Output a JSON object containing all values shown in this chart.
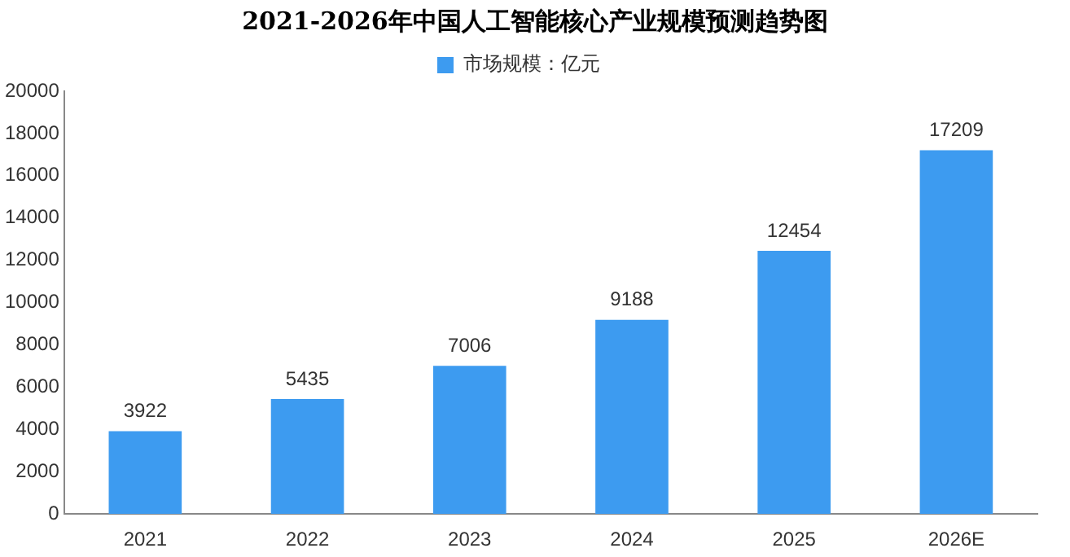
{
  "chart_data": {
    "type": "bar",
    "title": "2021-2026年中国人工智能核心产业规模预测趋势图",
    "categories": [
      "2021",
      "2022",
      "2023",
      "2024",
      "2025",
      "2026E"
    ],
    "series": [
      {
        "name": "市场规模：亿元",
        "color": "#3d9bf0",
        "values": [
          3922,
          5435,
          7006,
          9188,
          12454,
          17209
        ]
      }
    ],
    "ylim": [
      0,
      20000
    ],
    "yticks": [
      0,
      2000,
      4000,
      6000,
      8000,
      10000,
      12000,
      14000,
      16000,
      18000,
      20000
    ],
    "grid": false,
    "legend": "top",
    "data_labels": true
  }
}
